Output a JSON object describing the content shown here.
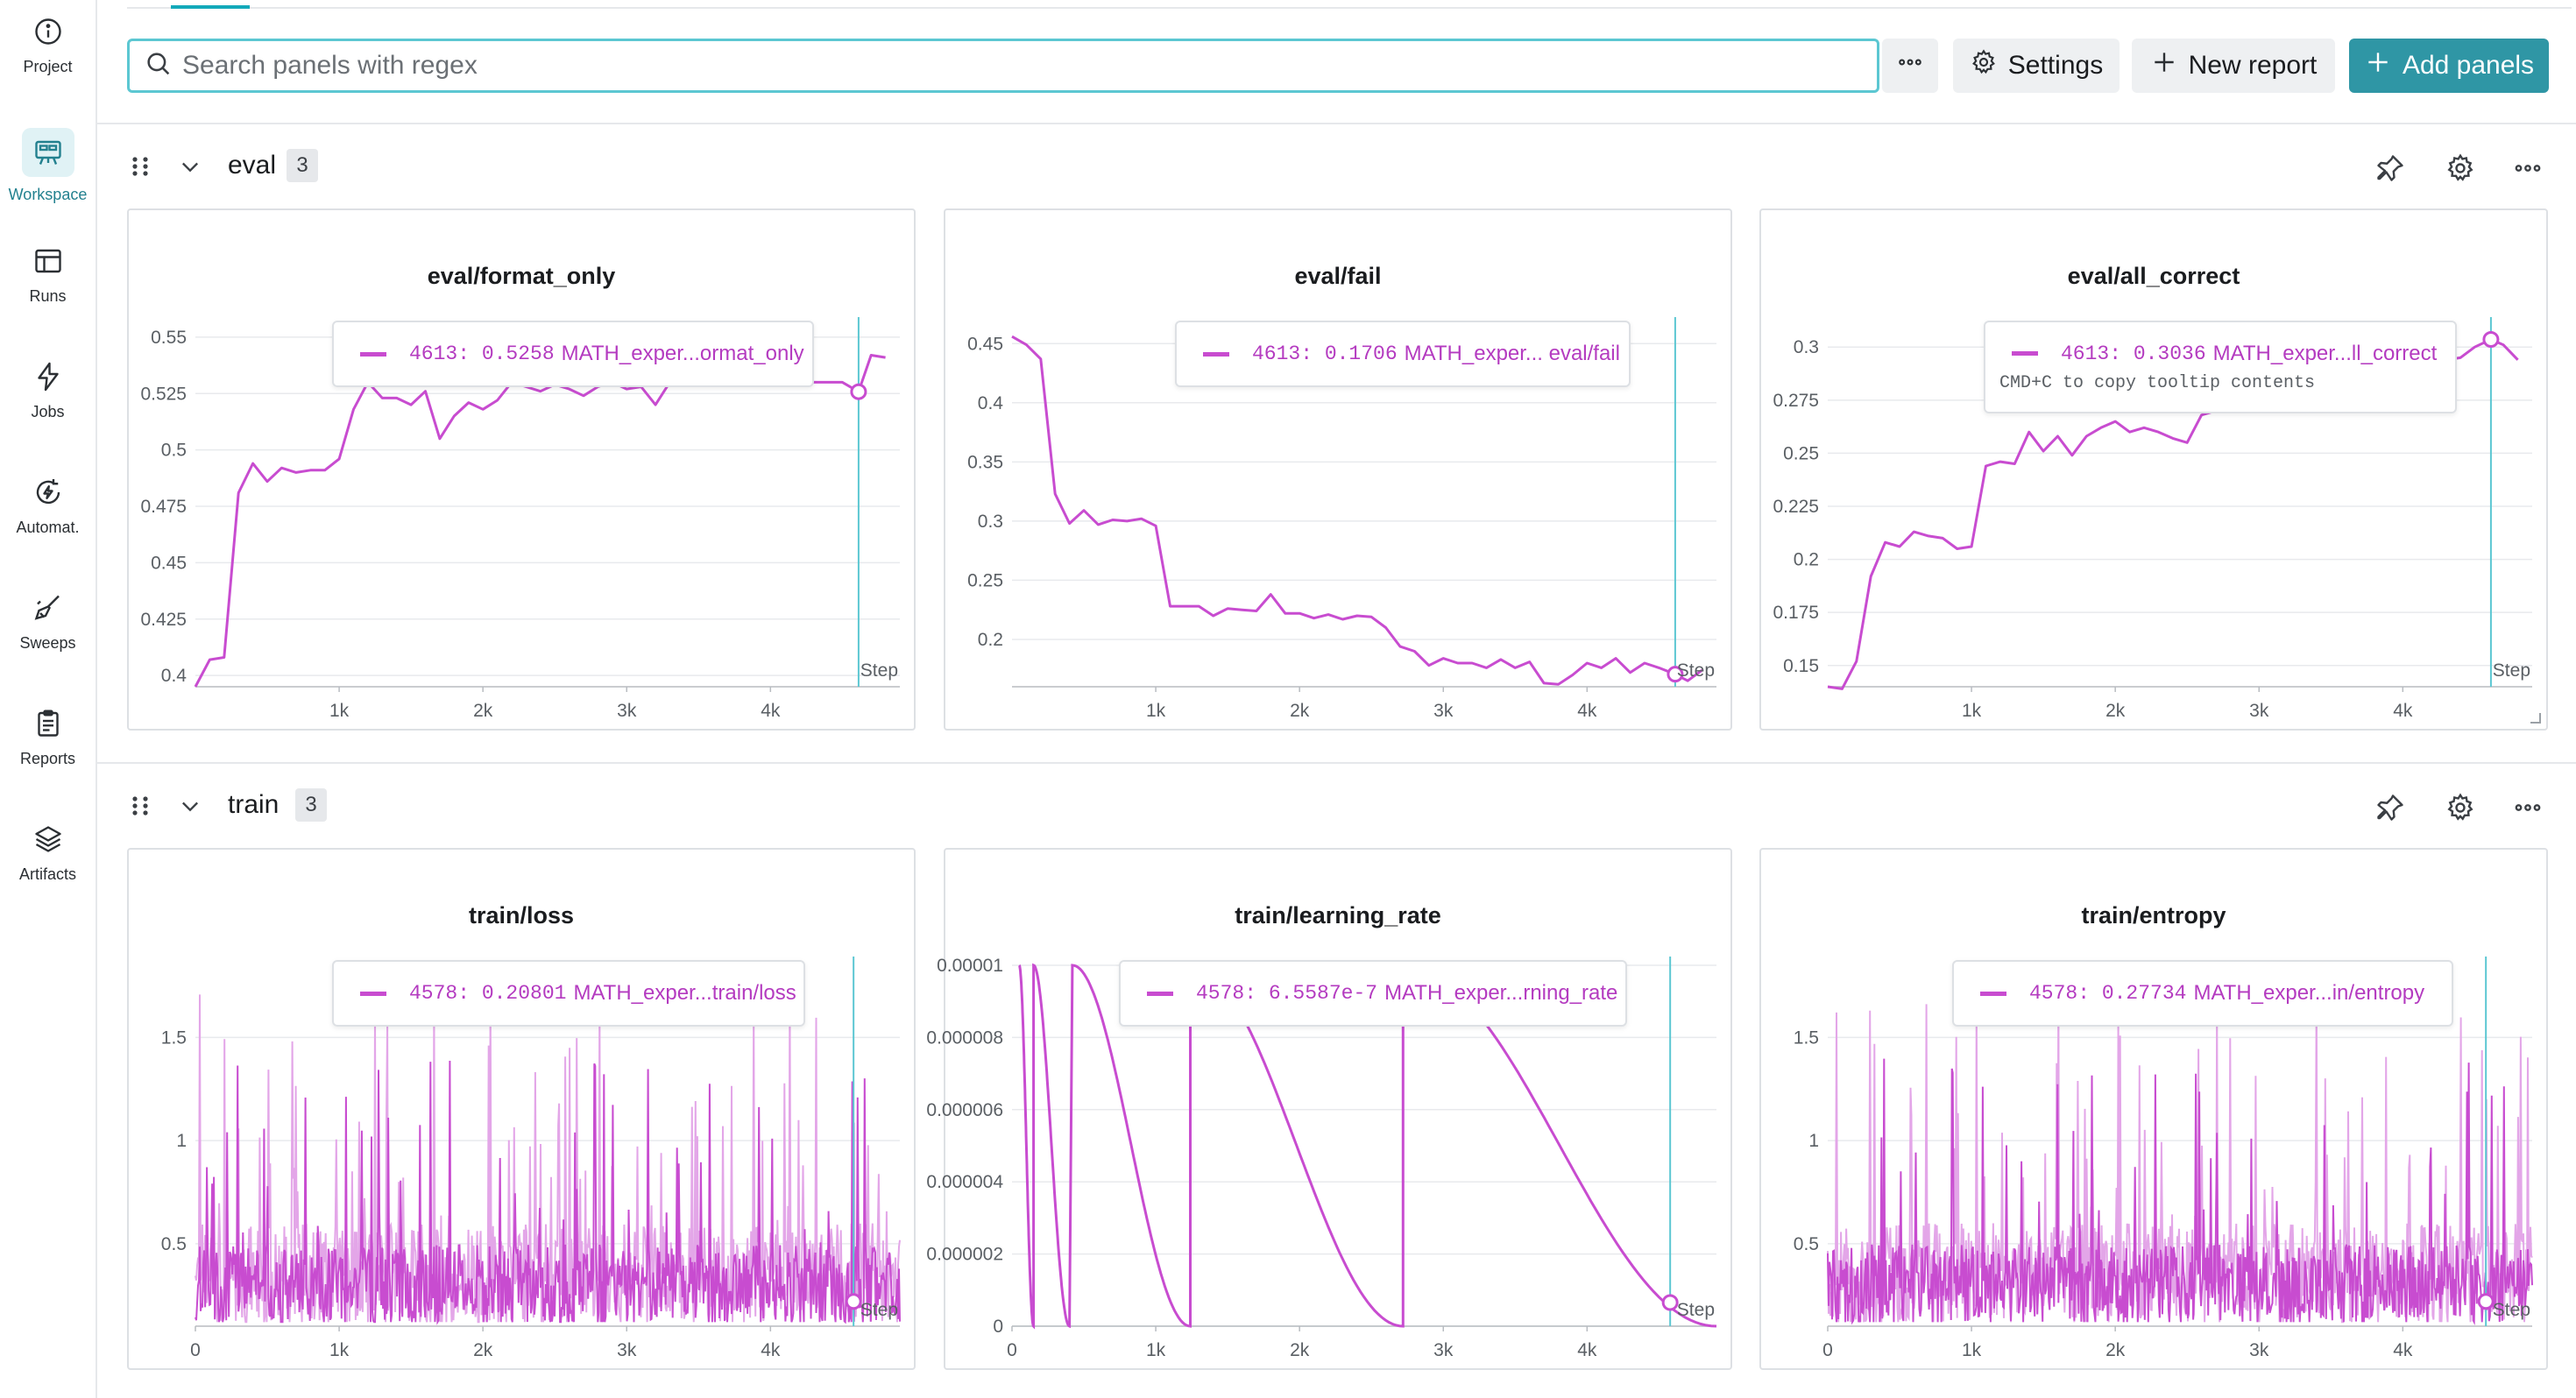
{
  "sidebar": {
    "items": [
      {
        "label": "Project",
        "icon": "info-icon"
      },
      {
        "label": "Workspace",
        "icon": "workspace-icon",
        "active": true
      },
      {
        "label": "Runs",
        "icon": "runs-table-icon"
      },
      {
        "label": "Jobs",
        "icon": "lightning-icon"
      },
      {
        "label": "Automat.",
        "icon": "automation-icon"
      },
      {
        "label": "Sweeps",
        "icon": "broom-icon"
      },
      {
        "label": "Reports",
        "icon": "clipboard-icon"
      },
      {
        "label": "Artifacts",
        "icon": "layers-icon"
      }
    ]
  },
  "toolbar": {
    "search_placeholder": "Search panels with regex",
    "more_label": "",
    "settings_label": "Settings",
    "new_report_label": "New report",
    "add_panels_label": "Add panels"
  },
  "colors": {
    "accent": "#2f96a5",
    "series": "#c84cd0",
    "series_light": "#e3a6e8",
    "cursor": "#5cc7d2"
  },
  "sections": [
    {
      "title": "eval",
      "count": "3",
      "panels": [
        {
          "title": "eval/format_only",
          "tooltip": {
            "step": "4613",
            "value": "0.5258",
            "name": "MATH_exper...ormat_only"
          },
          "chart_data": {
            "type": "line",
            "x_label": "Step",
            "x_ticks": [
              "1k",
              "2k",
              "3k",
              "4k"
            ],
            "y_ticks": [
              "0.55",
              "0.525",
              "0.5",
              "0.475",
              "0.45",
              "0.425",
              "0.4"
            ],
            "xlim": [
              0,
              4900
            ],
            "ylim": [
              0.395,
              0.555
            ],
            "cursor_step": 4613,
            "x": [
              0,
              100,
              200,
              300,
              400,
              500,
              600,
              700,
              800,
              900,
              1000,
              1100,
              1200,
              1300,
              1400,
              1500,
              1600,
              1700,
              1800,
              1900,
              2000,
              2100,
              2200,
              2300,
              2400,
              2500,
              2600,
              2700,
              2800,
              2900,
              3000,
              3100,
              3200,
              3300,
              3400,
              3500,
              3600,
              3700,
              3800,
              3900,
              4000,
              4100,
              4200,
              4300,
              4400,
              4500,
              4613,
              4700,
              4800
            ],
            "y": [
              0.395,
              0.407,
              0.408,
              0.481,
              0.494,
              0.486,
              0.492,
              0.49,
              0.491,
              0.491,
              0.496,
              0.518,
              0.53,
              0.523,
              0.523,
              0.52,
              0.526,
              0.505,
              0.515,
              0.521,
              0.518,
              0.522,
              0.53,
              0.528,
              0.526,
              0.529,
              0.527,
              0.524,
              0.528,
              0.53,
              0.527,
              0.528,
              0.52,
              0.53,
              0.53,
              0.53,
              0.529,
              0.53,
              0.53,
              0.53,
              0.53,
              0.53,
              0.53,
              0.53,
              0.53,
              0.53,
              0.5258,
              0.542,
              0.541
            ]
          }
        },
        {
          "title": "eval/fail",
          "tooltip": {
            "step": "4613",
            "value": "0.1706",
            "name": "MATH_exper... eval/fail"
          },
          "chart_data": {
            "type": "line",
            "x_label": "Step",
            "x_ticks": [
              "1k",
              "2k",
              "3k",
              "4k"
            ],
            "y_ticks": [
              "0.45",
              "0.4",
              "0.35",
              "0.3",
              "0.25",
              "0.2"
            ],
            "xlim": [
              0,
              4900
            ],
            "ylim": [
              0.16,
              0.465
            ],
            "cursor_step": 4613,
            "x": [
              0,
              100,
              200,
              300,
              400,
              500,
              600,
              700,
              800,
              900,
              1000,
              1100,
              1200,
              1300,
              1400,
              1500,
              1600,
              1700,
              1800,
              1900,
              2000,
              2100,
              2200,
              2300,
              2400,
              2500,
              2600,
              2700,
              2800,
              2900,
              3000,
              3100,
              3200,
              3300,
              3400,
              3500,
              3600,
              3700,
              3800,
              3900,
              4000,
              4100,
              4200,
              4300,
              4400,
              4500,
              4613,
              4700,
              4800
            ],
            "y": [
              0.456,
              0.449,
              0.437,
              0.323,
              0.298,
              0.309,
              0.297,
              0.301,
              0.3,
              0.302,
              0.296,
              0.228,
              0.228,
              0.228,
              0.22,
              0.226,
              0.225,
              0.224,
              0.238,
              0.222,
              0.222,
              0.218,
              0.221,
              0.217,
              0.22,
              0.219,
              0.21,
              0.194,
              0.19,
              0.178,
              0.184,
              0.18,
              0.18,
              0.176,
              0.183,
              0.176,
              0.181,
              0.163,
              0.162,
              0.17,
              0.18,
              0.176,
              0.184,
              0.172,
              0.18,
              0.176,
              0.1706,
              0.165,
              0.174
            ]
          }
        },
        {
          "title": "eval/all_correct",
          "tooltip": {
            "step": "4613",
            "value": "0.3036",
            "name": "MATH_exper...ll_correct",
            "hint": "CMD+C to copy tooltip contents"
          },
          "chart_data": {
            "type": "line",
            "x_label": "Step",
            "x_ticks": [
              "1k",
              "2k",
              "3k",
              "4k"
            ],
            "y_ticks": [
              "0.3",
              "0.275",
              "0.25",
              "0.225",
              "0.2",
              "0.175",
              "0.15"
            ],
            "xlim": [
              0,
              4900
            ],
            "ylim": [
              0.14,
              0.31
            ],
            "cursor_step": 4613,
            "x": [
              0,
              100,
              200,
              300,
              400,
              500,
              600,
              700,
              800,
              900,
              1000,
              1100,
              1200,
              1300,
              1400,
              1500,
              1600,
              1700,
              1800,
              1900,
              2000,
              2100,
              2200,
              2300,
              2400,
              2500,
              2600,
              2700,
              2800,
              2900,
              3000,
              3100,
              3200,
              3300,
              3400,
              3500,
              3600,
              3700,
              3800,
              3900,
              4000,
              4100,
              4200,
              4300,
              4400,
              4500,
              4613,
              4700,
              4800
            ],
            "y": [
              0.14,
              0.139,
              0.152,
              0.192,
              0.208,
              0.206,
              0.213,
              0.211,
              0.21,
              0.205,
              0.206,
              0.244,
              0.246,
              0.245,
              0.26,
              0.251,
              0.258,
              0.249,
              0.258,
              0.262,
              0.265,
              0.26,
              0.262,
              0.26,
              0.257,
              0.255,
              0.268,
              0.27,
              0.272,
              0.271,
              0.274,
              0.27,
              0.272,
              0.275,
              0.276,
              0.278,
              0.28,
              0.28,
              0.282,
              0.285,
              0.288,
              0.29,
              0.292,
              0.294,
              0.295,
              0.3,
              0.3036,
              0.301,
              0.294
            ]
          }
        }
      ]
    },
    {
      "title": "train",
      "count": "3",
      "panels": [
        {
          "title": "train/loss",
          "tooltip": {
            "step": "4578",
            "value": "0.20801",
            "name": "MATH_exper...train/loss"
          },
          "chart_data": {
            "type": "line",
            "x_label": "Step",
            "x_ticks": [
              "0",
              "1k",
              "2k",
              "3k",
              "4k"
            ],
            "y_ticks": [
              "1.5",
              "1",
              "0.5"
            ],
            "xlim": [
              0,
              4900
            ],
            "ylim": [
              0.1,
              1.85
            ],
            "cursor_step": 4578,
            "noise": {
              "base": 0.35,
              "spread": 0.5,
              "spike_max": 1.78,
              "seed": 7
            }
          }
        },
        {
          "title": "train/learning_rate",
          "tooltip": {
            "step": "4578",
            "value": "6.5587e-7",
            "name": "MATH_exper...rning_rate"
          },
          "chart_data": {
            "type": "line",
            "x_label": "Step",
            "x_ticks": [
              "0",
              "1k",
              "2k",
              "3k",
              "4k"
            ],
            "y_ticks": [
              "0.00001",
              "0.000008",
              "0.000006",
              "0.000004",
              "0.000002",
              "0"
            ],
            "xlim": [
              0,
              4900
            ],
            "ylim": [
              0,
              1e-05
            ],
            "cursor_step": 4578,
            "cycles": [
              [
                50,
                150
              ],
              [
                150,
                400
              ],
              [
                420,
                1240
              ],
              [
                1240,
                2720
              ],
              [
                2720,
                4900
              ]
            ]
          }
        },
        {
          "title": "train/entropy",
          "tooltip": {
            "step": "4578",
            "value": "0.27734",
            "name": "MATH_exper...in/entropy"
          },
          "chart_data": {
            "type": "line",
            "x_label": "Step",
            "x_ticks": [
              "0",
              "1k",
              "2k",
              "3k",
              "4k"
            ],
            "y_ticks": [
              "1.5",
              "1",
              "0.5"
            ],
            "xlim": [
              0,
              4900
            ],
            "ylim": [
              0.1,
              1.85
            ],
            "cursor_step": 4578,
            "noise": {
              "base": 0.35,
              "spread": 0.5,
              "spike_max": 1.78,
              "seed": 13
            }
          }
        }
      ]
    }
  ]
}
